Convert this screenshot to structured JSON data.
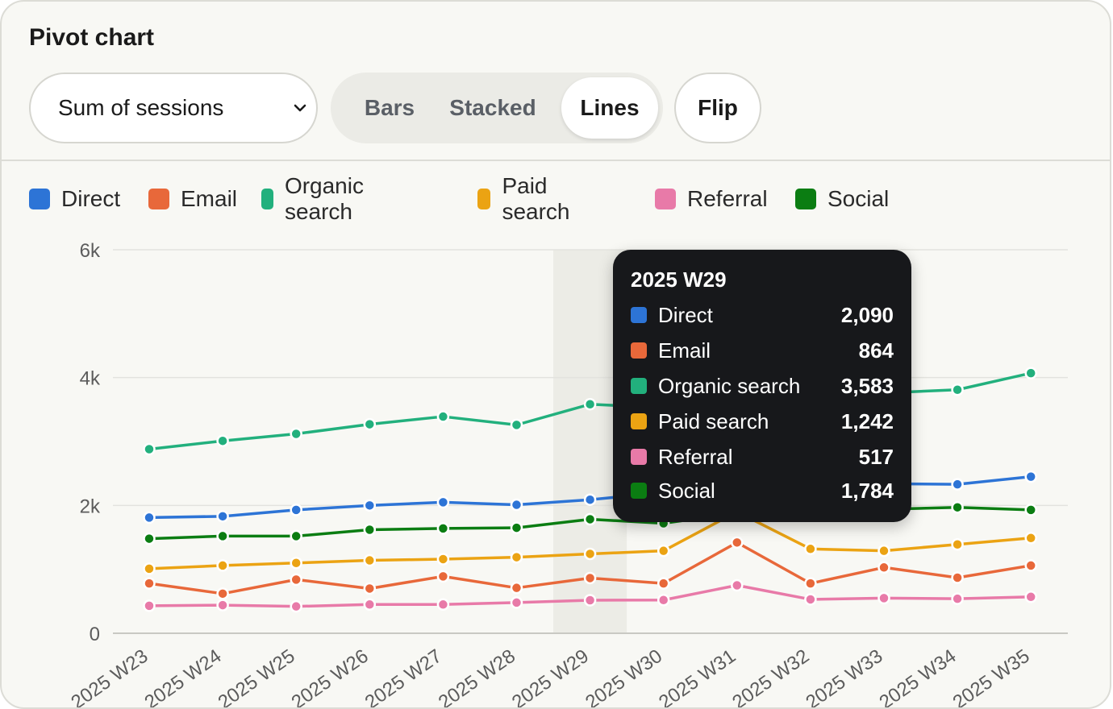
{
  "card": {
    "title": "Pivot chart"
  },
  "controls": {
    "measure_select": "Sum of sessions",
    "chart_types": [
      "Bars",
      "Stacked",
      "Lines"
    ],
    "active_chart_type": "Lines",
    "flip_label": "Flip"
  },
  "chart_data": {
    "type": "line",
    "title": "",
    "xlabel": "",
    "ylabel": "",
    "ylim": [
      0,
      6000
    ],
    "y_ticks": [
      0,
      2000,
      4000,
      6000
    ],
    "y_tick_labels": [
      "0",
      "2k",
      "4k",
      "6k"
    ],
    "grid": true,
    "legend_position": "top-left",
    "highlighted_category": "2025 W29",
    "categories": [
      "2025 W23",
      "2025 W24",
      "2025 W25",
      "2025 W26",
      "2025 W27",
      "2025 W28",
      "2025 W29",
      "2025 W30",
      "2025 W31",
      "2025 W32",
      "2025 W33",
      "2025 W34",
      "2025 W35"
    ],
    "series": [
      {
        "name": "Direct",
        "color": "#2d74d6",
        "values": [
          1810,
          1830,
          1930,
          2000,
          2050,
          2010,
          2090,
          2200,
          2400,
          2280,
          2340,
          2330,
          2450
        ]
      },
      {
        "name": "Email",
        "color": "#e8683a",
        "values": [
          780,
          620,
          840,
          700,
          890,
          710,
          864,
          780,
          1420,
          780,
          1030,
          870,
          1060
        ]
      },
      {
        "name": "Organic search",
        "color": "#22b07d",
        "values": [
          2880,
          3010,
          3120,
          3270,
          3390,
          3260,
          3583,
          3530,
          3690,
          3740,
          3760,
          3810,
          4070
        ]
      },
      {
        "name": "Paid search",
        "color": "#eba313",
        "values": [
          1010,
          1060,
          1100,
          1140,
          1160,
          1190,
          1242,
          1290,
          1900,
          1320,
          1290,
          1390,
          1490
        ]
      },
      {
        "name": "Referral",
        "color": "#e87aa8",
        "values": [
          430,
          440,
          420,
          450,
          450,
          480,
          517,
          520,
          750,
          530,
          550,
          540,
          570
        ]
      },
      {
        "name": "Social",
        "color": "#0b7d12",
        "values": [
          1480,
          1520,
          1520,
          1620,
          1640,
          1650,
          1784,
          1720,
          1880,
          1910,
          1940,
          1970,
          1930
        ]
      }
    ]
  },
  "tooltip": {
    "title": "2025 W29",
    "rows": [
      {
        "label": "Direct",
        "value": "2,090",
        "color": "#2d74d6"
      },
      {
        "label": "Email",
        "value": "864",
        "color": "#e8683a"
      },
      {
        "label": "Organic search",
        "value": "3,583",
        "color": "#22b07d"
      },
      {
        "label": "Paid search",
        "value": "1,242",
        "color": "#eba313"
      },
      {
        "label": "Referral",
        "value": "517",
        "color": "#e87aa8"
      },
      {
        "label": "Social",
        "value": "1,784",
        "color": "#0b7d12"
      }
    ]
  }
}
